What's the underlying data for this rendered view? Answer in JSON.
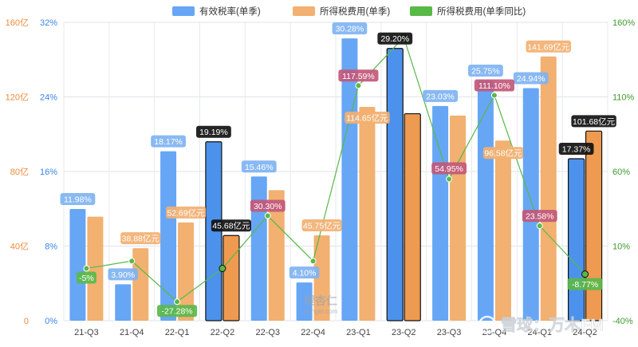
{
  "chart_data": {
    "type": "bar",
    "categories": [
      "21-Q3",
      "21-Q4",
      "22-Q1",
      "22-Q2",
      "22-Q3",
      "22-Q4",
      "23-Q1",
      "23-Q2",
      "23-Q3",
      "23-Q4",
      "24-Q1",
      "24-Q2"
    ],
    "legend_position": "top-center",
    "grid": true,
    "highlighted_categories": [
      "22-Q2",
      "23-Q2",
      "24-Q2"
    ],
    "series": [
      {
        "name": "有效税率(单季)",
        "type": "bar",
        "axis": "left-percent",
        "color": "#66a6f5",
        "values": [
          11.98,
          3.9,
          18.17,
          19.19,
          15.46,
          4.1,
          30.28,
          29.2,
          23.03,
          25.75,
          24.94,
          17.37
        ],
        "labels": [
          "11.98%",
          "3.90%",
          "18.17%",
          "19.19%",
          "15.46%",
          "4.10%",
          "30.28%",
          "29.20%",
          "23.03%",
          "25.75%",
          "24.94%",
          "17.37%"
        ]
      },
      {
        "name": "所得税费用(单季)",
        "type": "bar",
        "axis": "left-amount",
        "color": "#f2b071",
        "values": [
          55.8,
          38.88,
          52.69,
          45.68,
          70.0,
          45.75,
          114.65,
          111.0,
          110.0,
          96.58,
          141.69,
          101.68
        ],
        "labels": [
          "",
          "38.88亿元",
          "52.69亿元",
          "45.68亿元",
          "",
          "45.75亿元",
          "114.65亿元",
          "",
          "",
          "96.58亿元",
          "141.69亿元",
          "101.68亿元"
        ]
      },
      {
        "name": "所得税费用(单季同比)",
        "type": "line",
        "axis": "right",
        "color": "#58b947",
        "values": [
          -5,
          0,
          -27.28,
          -5,
          30.3,
          0,
          117.59,
          150,
          54.95,
          111.1,
          23.58,
          -8.77
        ],
        "labels": [
          "-5%",
          "",
          "-27.28%",
          "",
          "30.30%",
          "",
          "117.59%",
          "",
          "54.95%",
          "111.10%",
          "23.58%",
          "-8.77%"
        ]
      }
    ],
    "axes": {
      "left_percent": {
        "ticks": [
          "0%",
          "8%",
          "16%",
          "24%",
          "32%"
        ],
        "range": [
          0,
          32
        ]
      },
      "left_amount": {
        "ticks": [
          "0",
          "40亿",
          "80亿",
          "120亿",
          "160亿"
        ],
        "range": [
          0,
          160
        ]
      },
      "right": {
        "ticks": [
          "-40%",
          "10%",
          "60%",
          "110%",
          "160%"
        ],
        "range": [
          -40,
          160
        ]
      }
    }
  },
  "watermark": "雪球：万木FM",
  "watermark_small": "理杏仁",
  "watermark_url": "lixinger.com"
}
